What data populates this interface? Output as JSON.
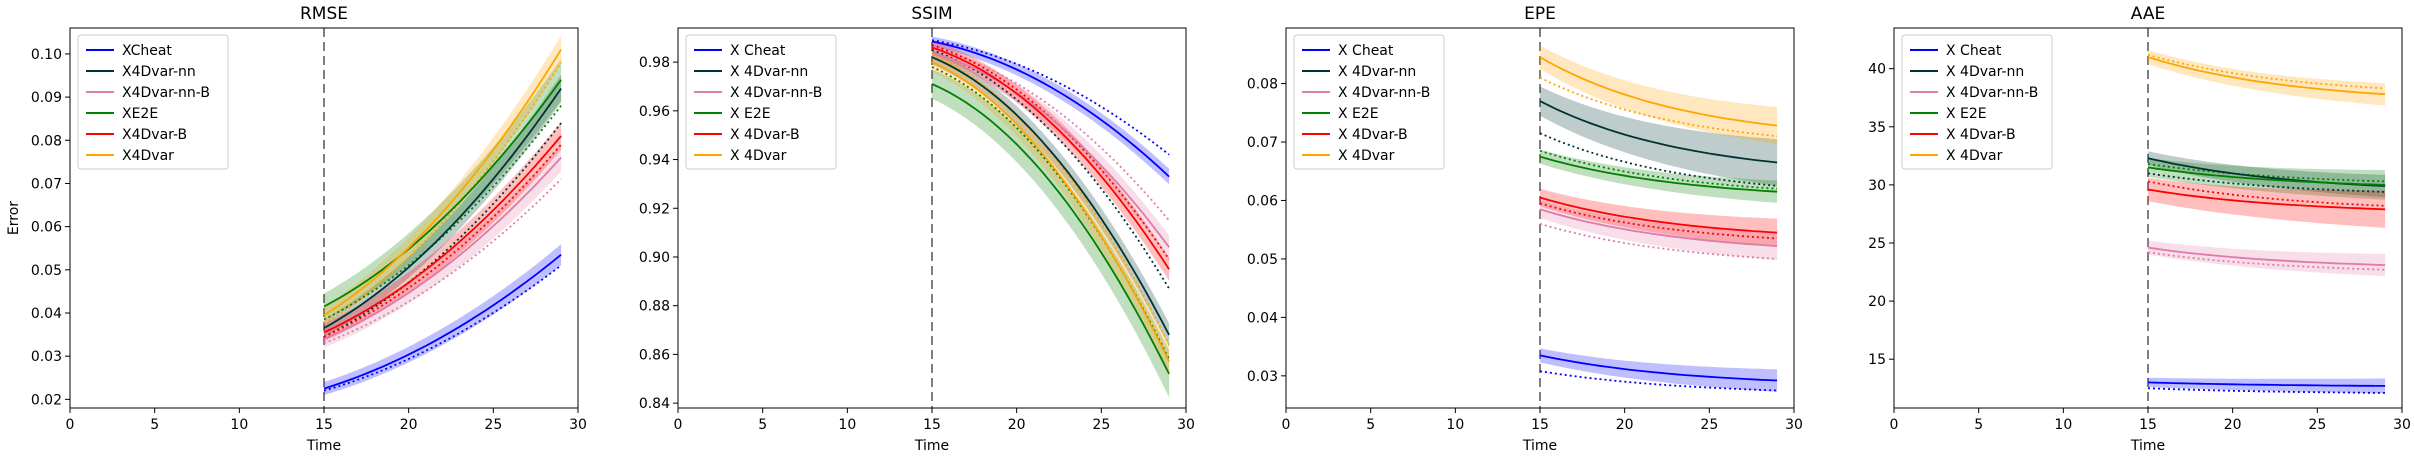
{
  "chart_data": [
    {
      "type": "line",
      "title": "RMSE",
      "xlabel": "Time",
      "ylabel": "Error",
      "xlim": [
        0,
        30
      ],
      "ylim": [
        0.018,
        0.106
      ],
      "xticks": [
        "0",
        "5",
        "10",
        "15",
        "20",
        "25",
        "30"
      ],
      "yticks": [
        "0.02",
        "0.03",
        "0.04",
        "0.05",
        "0.06",
        "0.07",
        "0.08",
        "0.09",
        "0.10"
      ],
      "vline_x": 15,
      "legend_position": "top-left",
      "series": [
        {
          "name": "XCheat",
          "color": "#0000ff",
          "start": 0.0225,
          "end": 0.0535,
          "shape": "convex",
          "dotted_start": 0.022,
          "dotted_end": 0.051,
          "band": 0.0015
        },
        {
          "name": "X4Dvar-nn",
          "color": "#003333",
          "start": 0.0365,
          "end": 0.092,
          "shape": "convex",
          "dotted_start": 0.0345,
          "dotted_end": 0.084,
          "band": 0.002
        },
        {
          "name": "X4Dvar-nn-B",
          "color": "#e07aa8",
          "start": 0.034,
          "end": 0.076,
          "shape": "convex",
          "dotted_start": 0.033,
          "dotted_end": 0.071,
          "band": 0.002
        },
        {
          "name": "XE2E",
          "color": "#008000",
          "start": 0.0415,
          "end": 0.094,
          "shape": "convex",
          "dotted_start": 0.0385,
          "dotted_end": 0.088,
          "band": 0.003
        },
        {
          "name": "X4Dvar-B",
          "color": "#ff0000",
          "start": 0.0355,
          "end": 0.081,
          "shape": "convex",
          "dotted_start": 0.0345,
          "dotted_end": 0.079,
          "band": 0.002
        },
        {
          "name": "X4Dvar",
          "color": "#ffa500",
          "start": 0.0395,
          "end": 0.101,
          "shape": "convex",
          "dotted_start": 0.0375,
          "dotted_end": 0.098,
          "band": 0.002
        }
      ]
    },
    {
      "type": "line",
      "title": "SSIM",
      "xlabel": "Time",
      "ylabel": "",
      "xlim": [
        0,
        30
      ],
      "ylim": [
        0.838,
        0.994
      ],
      "xticks": [
        "0",
        "5",
        "10",
        "15",
        "20",
        "25",
        "30"
      ],
      "yticks": [
        "0.84",
        "0.86",
        "0.88",
        "0.90",
        "0.92",
        "0.94",
        "0.96",
        "0.98"
      ],
      "vline_x": 15,
      "legend_position": "top-left",
      "series": [
        {
          "name": "X Cheat",
          "color": "#0000ff",
          "start": 0.9885,
          "end": 0.933,
          "shape": "concave",
          "dotted_start": 0.989,
          "dotted_end": 0.942,
          "band": 0.002
        },
        {
          "name": "X 4Dvar-nn",
          "color": "#003333",
          "start": 0.982,
          "end": 0.868,
          "shape": "concave",
          "dotted_start": 0.985,
          "dotted_end": 0.887,
          "band": 0.003
        },
        {
          "name": "X 4Dvar-nn-B",
          "color": "#e07aa8",
          "start": 0.984,
          "end": 0.904,
          "shape": "concave",
          "dotted_start": 0.986,
          "dotted_end": 0.915,
          "band": 0.003
        },
        {
          "name": "X E2E",
          "color": "#008000",
          "start": 0.971,
          "end": 0.852,
          "shape": "concave",
          "dotted_start": 0.978,
          "dotted_end": 0.858,
          "band": 0.006
        },
        {
          "name": "X 4Dvar-B",
          "color": "#ff0000",
          "start": 0.986,
          "end": 0.895,
          "shape": "concave",
          "dotted_start": 0.987,
          "dotted_end": 0.899,
          "band": 0.003
        },
        {
          "name": "X 4Dvar",
          "color": "#ffa500",
          "start": 0.98,
          "end": 0.857,
          "shape": "concave",
          "dotted_start": 0.983,
          "dotted_end": 0.864,
          "band": 0.004
        }
      ]
    },
    {
      "type": "line",
      "title": "EPE",
      "xlabel": "Time",
      "ylabel": "",
      "xlim": [
        0,
        30
      ],
      "ylim": [
        0.0245,
        0.0895
      ],
      "xticks": [
        "0",
        "5",
        "10",
        "15",
        "20",
        "25",
        "30"
      ],
      "yticks": [
        "0.03",
        "0.04",
        "0.05",
        "0.06",
        "0.07",
        "0.08"
      ],
      "vline_x": 15,
      "legend_position": "top-left",
      "series": [
        {
          "name": "X Cheat",
          "color": "#0000ff",
          "start": 0.0335,
          "end": 0.0292,
          "shape": "decay",
          "dotted_start": 0.0308,
          "dotted_end": 0.0275,
          "band": 0.0012
        },
        {
          "name": "X 4Dvar-nn",
          "color": "#003333",
          "start": 0.077,
          "end": 0.0665,
          "shape": "decay",
          "dotted_start": 0.0715,
          "dotted_end": 0.0625,
          "band": 0.0025
        },
        {
          "name": "X 4Dvar-nn-B",
          "color": "#e07aa8",
          "start": 0.0585,
          "end": 0.0522,
          "shape": "decay",
          "dotted_start": 0.056,
          "dotted_end": 0.05,
          "band": 0.0015
        },
        {
          "name": "X E2E",
          "color": "#008000",
          "start": 0.0675,
          "end": 0.0615,
          "shape": "decay",
          "dotted_start": 0.0685,
          "dotted_end": 0.062,
          "band": 0.0012
        },
        {
          "name": "X 4Dvar-B",
          "color": "#ff0000",
          "start": 0.0605,
          "end": 0.0545,
          "shape": "decay",
          "dotted_start": 0.0595,
          "dotted_end": 0.0535,
          "band": 0.0015
        },
        {
          "name": "X 4Dvar",
          "color": "#ffa500",
          "start": 0.0845,
          "end": 0.0728,
          "shape": "decay",
          "dotted_start": 0.081,
          "dotted_end": 0.071,
          "band": 0.002
        }
      ]
    },
    {
      "type": "line",
      "title": "AAE",
      "xlabel": "Time",
      "ylabel": "",
      "xlim": [
        0,
        30
      ],
      "ylim": [
        10.8,
        43.5
      ],
      "xticks": [
        "0",
        "5",
        "10",
        "15",
        "20",
        "25",
        "30"
      ],
      "yticks": [
        "15",
        "20",
        "25",
        "30",
        "35",
        "40"
      ],
      "vline_x": 15,
      "legend_position": "top-left",
      "series": [
        {
          "name": "X Cheat",
          "color": "#0000ff",
          "start": 13.0,
          "end": 12.7,
          "shape": "decay",
          "dotted_start": 12.5,
          "dotted_end": 12.1,
          "band": 0.4
        },
        {
          "name": "X 4Dvar-nn",
          "color": "#003333",
          "start": 32.3,
          "end": 29.9,
          "shape": "decay",
          "dotted_start": 31.0,
          "dotted_end": 29.4,
          "band": 0.6
        },
        {
          "name": "X 4Dvar-nn-B",
          "color": "#e07aa8",
          "start": 24.6,
          "end": 23.1,
          "shape": "decay",
          "dotted_start": 24.2,
          "dotted_end": 22.7,
          "band": 0.6
        },
        {
          "name": "X E2E",
          "color": "#008000",
          "start": 31.5,
          "end": 30.0,
          "shape": "decay",
          "dotted_start": 31.8,
          "dotted_end": 30.3,
          "band": 0.8
        },
        {
          "name": "X 4Dvar-B",
          "color": "#ff0000",
          "start": 29.6,
          "end": 27.9,
          "shape": "decay",
          "dotted_start": 30.3,
          "dotted_end": 28.2,
          "band": 1.0
        },
        {
          "name": "X 4Dvar",
          "color": "#ffa500",
          "start": 41.0,
          "end": 37.8,
          "shape": "decay",
          "dotted_start": 41.2,
          "dotted_end": 38.3,
          "band": 0.6
        }
      ]
    }
  ]
}
